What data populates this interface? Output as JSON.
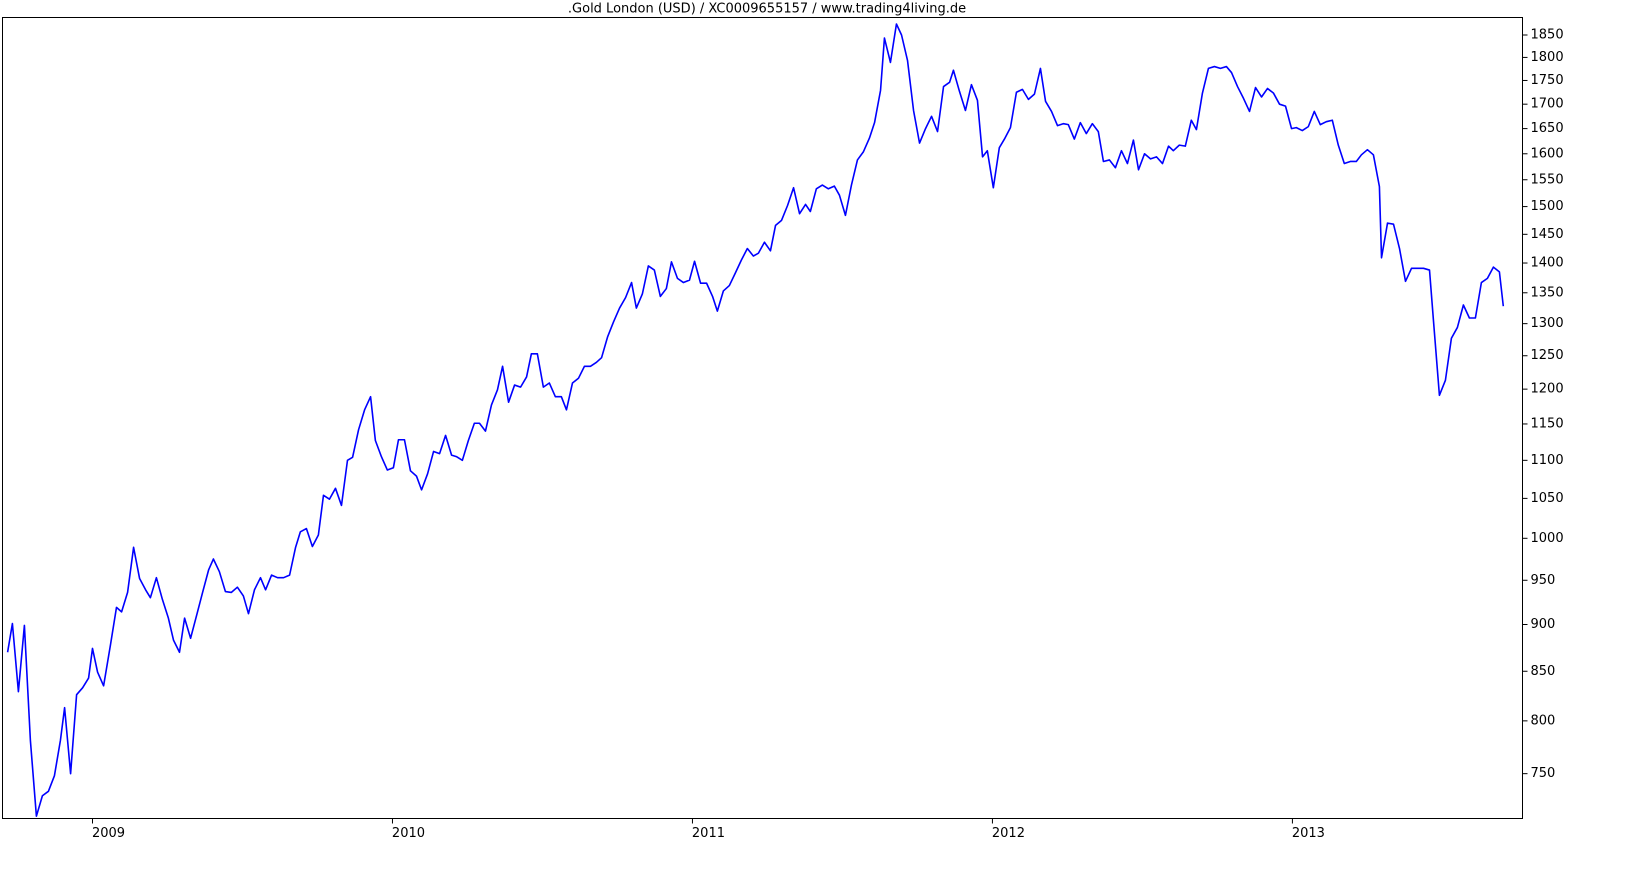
{
  "chart_data": {
    "type": "line",
    "title": ".Gold London (USD) / XC0009655157 / www.trading4living.de",
    "x": [
      2008.717,
      2008.733,
      2008.753,
      2008.773,
      2008.793,
      2008.813,
      2008.833,
      2008.853,
      2008.873,
      2008.893,
      2008.907,
      2008.927,
      2008.947,
      2008.967,
      2008.987,
      2009.0,
      2009.017,
      2009.037,
      2009.06,
      2009.08,
      2009.097,
      2009.117,
      2009.137,
      2009.157,
      2009.177,
      2009.193,
      2009.213,
      2009.233,
      2009.253,
      2009.27,
      2009.29,
      2009.307,
      2009.327,
      2009.347,
      2009.367,
      2009.387,
      2009.403,
      2009.423,
      2009.443,
      2009.463,
      2009.483,
      2009.503,
      2009.52,
      2009.54,
      2009.56,
      2009.577,
      2009.597,
      2009.617,
      2009.637,
      2009.657,
      2009.677,
      2009.693,
      2009.713,
      2009.733,
      2009.753,
      2009.77,
      2009.79,
      2009.81,
      2009.83,
      2009.85,
      2009.867,
      2009.887,
      2009.907,
      2009.927,
      2009.943,
      2009.963,
      2009.983,
      2010.003,
      2010.02,
      2010.04,
      2010.06,
      2010.08,
      2010.097,
      2010.117,
      2010.137,
      2010.157,
      2010.177,
      2010.197,
      2010.213,
      2010.233,
      2010.253,
      2010.273,
      2010.29,
      2010.31,
      2010.33,
      2010.35,
      2010.367,
      2010.387,
      2010.407,
      2010.427,
      2010.447,
      2010.463,
      2010.483,
      2010.503,
      2010.523,
      2010.543,
      2010.563,
      2010.58,
      2010.6,
      2010.62,
      2010.64,
      2010.66,
      2010.68,
      2010.697,
      2010.717,
      2010.737,
      2010.757,
      2010.777,
      2010.797,
      2010.813,
      2010.833,
      2010.853,
      2010.873,
      2010.893,
      2010.913,
      2010.93,
      2010.95,
      2010.97,
      2010.99,
      2011.007,
      2011.027,
      2011.047,
      2011.067,
      2011.083,
      2011.103,
      2011.123,
      2011.143,
      2011.163,
      2011.183,
      2011.203,
      2011.22,
      2011.24,
      2011.26,
      2011.277,
      2011.297,
      2011.317,
      2011.337,
      2011.357,
      2011.377,
      2011.393,
      2011.413,
      2011.433,
      2011.453,
      2011.473,
      2011.49,
      2011.51,
      2011.53,
      2011.55,
      2011.57,
      2011.59,
      2011.607,
      2011.627,
      2011.64,
      2011.66,
      2011.68,
      2011.697,
      2011.717,
      2011.737,
      2011.757,
      2011.777,
      2011.797,
      2011.817,
      2011.837,
      2011.857,
      2011.87,
      2011.89,
      2011.91,
      2011.93,
      2011.95,
      2011.967,
      2011.983,
      2012.003,
      2012.023,
      2012.04,
      2012.06,
      2012.08,
      2012.1,
      2012.12,
      2012.14,
      2012.16,
      2012.177,
      2012.197,
      2012.217,
      2012.237,
      2012.253,
      2012.273,
      2012.293,
      2012.313,
      2012.333,
      2012.353,
      2012.37,
      2012.39,
      2012.41,
      2012.43,
      2012.45,
      2012.47,
      2012.487,
      2012.507,
      2012.527,
      2012.547,
      2012.567,
      2012.587,
      2012.603,
      2012.623,
      2012.643,
      2012.663,
      2012.68,
      2012.7,
      2012.72,
      2012.74,
      2012.76,
      2012.78,
      2012.797,
      2012.817,
      2012.837,
      2012.857,
      2012.877,
      2012.897,
      2012.917,
      2012.937,
      2012.957,
      2012.977,
      2012.997,
      2013.013,
      2013.033,
      2013.053,
      2013.073,
      2013.093,
      2013.113,
      2013.133,
      2013.153,
      2013.173,
      2013.193,
      2013.213,
      2013.23,
      2013.25,
      2013.27,
      2013.29,
      2013.297,
      2013.317,
      2013.337,
      2013.357,
      2013.377,
      2013.397,
      2013.417,
      2013.437,
      2013.457,
      2013.47,
      2013.49,
      2013.51,
      2013.53,
      2013.55,
      2013.57,
      2013.59,
      2013.61,
      2013.63,
      2013.65,
      2013.67,
      2013.69,
      2013.703
    ],
    "series": [
      {
        "color": "#0000ff",
        "values": [
          870,
          901,
          829,
          899,
          781,
          712,
          730,
          734,
          748,
          781,
          813,
          750,
          826,
          833,
          843,
          874,
          849,
          835,
          878,
          919,
          914,
          936,
          989,
          952,
          939,
          930,
          953,
          928,
          907,
          883,
          870,
          907,
          885,
          910,
          936,
          962,
          975,
          960,
          937,
          936,
          942,
          932,
          912,
          939,
          953,
          939,
          956,
          953,
          953,
          956,
          989,
          1008,
          1012,
          990,
          1004,
          1054,
          1049,
          1063,
          1041,
          1100,
          1104,
          1142,
          1170,
          1189,
          1127,
          1105,
          1087,
          1090,
          1128,
          1128,
          1086,
          1079,
          1061,
          1082,
          1112,
          1109,
          1134,
          1107,
          1105,
          1100,
          1127,
          1151,
          1151,
          1140,
          1177,
          1199,
          1234,
          1181,
          1206,
          1203,
          1218,
          1253,
          1253,
          1203,
          1209,
          1189,
          1189,
          1170,
          1209,
          1216,
          1234,
          1234,
          1240,
          1247,
          1279,
          1303,
          1325,
          1342,
          1367,
          1325,
          1348,
          1395,
          1388,
          1344,
          1357,
          1402,
          1374,
          1367,
          1371,
          1403,
          1366,
          1366,
          1344,
          1320,
          1353,
          1362,
          1383,
          1405,
          1425,
          1412,
          1417,
          1436,
          1421,
          1466,
          1475,
          1502,
          1535,
          1487,
          1504,
          1491,
          1533,
          1540,
          1533,
          1538,
          1521,
          1484,
          1540,
          1588,
          1604,
          1631,
          1662,
          1729,
          1843,
          1789,
          1875,
          1850,
          1793,
          1687,
          1621,
          1650,
          1675,
          1644,
          1737,
          1746,
          1772,
          1727,
          1687,
          1741,
          1708,
          1594,
          1606,
          1535,
          1612,
          1629,
          1652,
          1725,
          1731,
          1710,
          1721,
          1776,
          1706,
          1685,
          1656,
          1660,
          1658,
          1629,
          1662,
          1640,
          1660,
          1644,
          1585,
          1588,
          1573,
          1606,
          1581,
          1627,
          1569,
          1600,
          1590,
          1594,
          1581,
          1615,
          1606,
          1617,
          1615,
          1667,
          1648,
          1723,
          1776,
          1780,
          1776,
          1780,
          1767,
          1737,
          1712,
          1685,
          1735,
          1715,
          1733,
          1723,
          1700,
          1696,
          1650,
          1652,
          1646,
          1654,
          1685,
          1658,
          1664,
          1667,
          1617,
          1581,
          1585,
          1585,
          1598,
          1608,
          1598,
          1537,
          1409,
          1470,
          1468,
          1425,
          1369,
          1391,
          1391,
          1391,
          1388,
          1306,
          1191,
          1213,
          1277,
          1294,
          1330,
          1309,
          1309,
          1367,
          1374,
          1393,
          1385,
          1328
        ]
      }
    ],
    "xlim": [
      2008.7,
      2013.767
    ],
    "xticks": [
      2009,
      2010,
      2011,
      2012,
      2013
    ],
    "ylim": [
      710,
      1890
    ],
    "yticks": [
      750,
      800,
      850,
      900,
      950,
      1000,
      1050,
      1100,
      1150,
      1200,
      1250,
      1300,
      1350,
      1400,
      1450,
      1500,
      1550,
      1600,
      1650,
      1700,
      1750,
      1800,
      1850
    ],
    "log_y": true,
    "grid": false
  }
}
